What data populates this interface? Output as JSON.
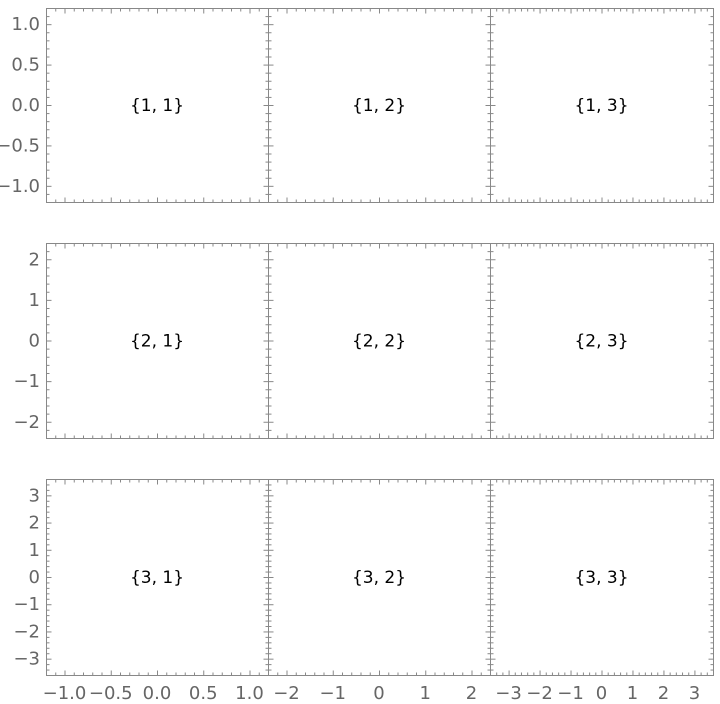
{
  "chart_data": {
    "type": "grid",
    "rows": 3,
    "columns": 3,
    "grid": false,
    "frame_color": "#888888",
    "tick_label_color": "#666666",
    "column_xlim": [
      [
        -1.2,
        1.2
      ],
      [
        -2.4,
        2.4
      ],
      [
        -3.6,
        3.6
      ]
    ],
    "row_ylim": [
      [
        -1.2,
        1.2
      ],
      [
        -2.4,
        2.4
      ],
      [
        -3.6,
        3.6
      ]
    ],
    "column_xticks": [
      {
        "values": [
          -1.0,
          -0.5,
          0.0,
          0.5,
          1.0
        ],
        "labels": [
          "-1.0",
          "-0.5",
          "0.0",
          "0.5",
          "1.0"
        ],
        "minor_step": 0.1
      },
      {
        "values": [
          -2,
          -1,
          0,
          1,
          2
        ],
        "labels": [
          "-2",
          "-1",
          "0",
          "1",
          "2"
        ],
        "minor_step": 0.2
      },
      {
        "values": [
          -3,
          -2,
          -1,
          0,
          1,
          2,
          3
        ],
        "labels": [
          "-3",
          "-2",
          "-1",
          "0",
          "1",
          "2",
          "3"
        ],
        "minor_step": 0.2
      }
    ],
    "row_yticks": [
      {
        "values": [
          1.0,
          0.5,
          0.0,
          -0.5,
          -1.0
        ],
        "labels": [
          "1.0",
          "0.5",
          "0.0",
          "-0.5",
          "-1.0"
        ],
        "minor_step": 0.1
      },
      {
        "values": [
          2,
          1,
          0,
          -1,
          -2
        ],
        "labels": [
          "2",
          "1",
          "0",
          "-1",
          "-2"
        ],
        "minor_step": 0.2
      },
      {
        "values": [
          3,
          2,
          1,
          0,
          -1,
          -2,
          -3
        ],
        "labels": [
          "3",
          "2",
          "1",
          "0",
          "-1",
          "-2",
          "-3"
        ],
        "minor_step": 0.2
      }
    ],
    "panel_labels": [
      [
        "{1, 1}",
        "{1, 2}",
        "{1, 3}"
      ],
      [
        "{2, 1}",
        "{2, 2}",
        "{2, 3}"
      ],
      [
        "{3, 1}",
        "{3, 2}",
        "{3, 3}"
      ]
    ]
  }
}
